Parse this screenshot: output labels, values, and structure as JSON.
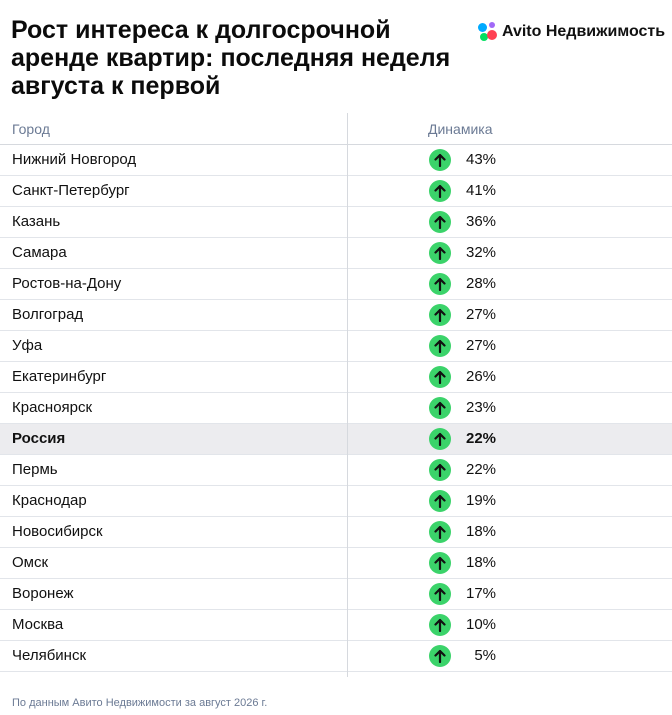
{
  "title": "Рост интереса к долгосрочной аренде квартир: последняя неделя августа к первой",
  "logo": {
    "text": "Avito Недвижимость",
    "icon": "avito-logo-icon"
  },
  "chart_data": {
    "type": "table",
    "columns": [
      "Город",
      "Динамика"
    ],
    "rows": [
      {
        "city": "Нижний Новгород",
        "value": "43%",
        "trend": "up"
      },
      {
        "city": "Санкт-Петербург",
        "value": "41%",
        "trend": "up"
      },
      {
        "city": "Казань",
        "value": "36%",
        "trend": "up"
      },
      {
        "city": "Самара",
        "value": "32%",
        "trend": "up"
      },
      {
        "city": "Ростов-на-Дону",
        "value": "28%",
        "trend": "up"
      },
      {
        "city": "Волгоград",
        "value": "27%",
        "trend": "up"
      },
      {
        "city": "Уфа",
        "value": "27%",
        "trend": "up"
      },
      {
        "city": "Екатеринбург",
        "value": "26%",
        "trend": "up"
      },
      {
        "city": "Красноярск",
        "value": "23%",
        "trend": "up"
      },
      {
        "city": "Россия",
        "value": "22%",
        "trend": "up",
        "highlight": true
      },
      {
        "city": "Пермь",
        "value": "22%",
        "trend": "up"
      },
      {
        "city": "Краснодар",
        "value": "19%",
        "trend": "up"
      },
      {
        "city": "Новосибирск",
        "value": "18%",
        "trend": "up"
      },
      {
        "city": "Омск",
        "value": "18%",
        "trend": "up"
      },
      {
        "city": "Воронеж",
        "value": "17%",
        "trend": "up"
      },
      {
        "city": "Москва",
        "value": "10%",
        "trend": "up"
      },
      {
        "city": "Челябинск",
        "value": "5%",
        "trend": "up"
      }
    ],
    "arrow_color": "#3bd36a",
    "highlight_color": "#ececef"
  },
  "footnote": "По данным Авито Недвижимости за август 2026 г."
}
